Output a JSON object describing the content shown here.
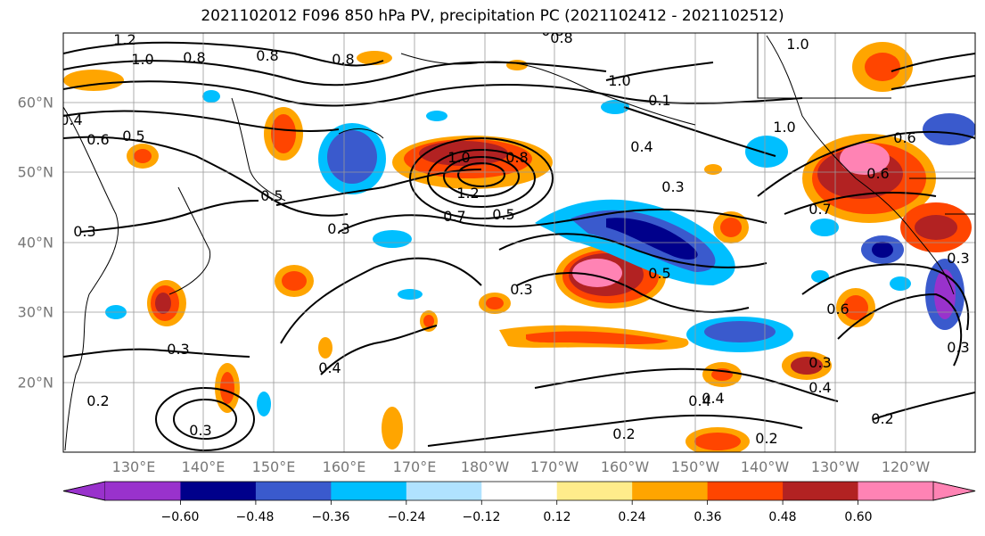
{
  "title": "2021102012 F096 850 hPa PV, precipitation PC (2021102412 - 2021102512)",
  "lat_labels": [
    "60°N",
    "50°N",
    "40°N",
    "30°N",
    "20°N"
  ],
  "lon_labels": [
    "130°E",
    "140°E",
    "150°E",
    "160°E",
    "170°E",
    "180°W",
    "170°W",
    "160°W",
    "150°W",
    "140°W",
    "130°W",
    "120°W"
  ],
  "contour_labels": [
    "1.2",
    "1.0",
    "0.8",
    "0.8",
    "0.8",
    "0.8",
    "1.0",
    "1.0",
    "0.4",
    "0.6",
    "0.5",
    "0.3",
    "0.5",
    "0.3",
    "1.0",
    "0.8",
    "1.2",
    "0.7",
    "0.5",
    "0.3",
    "0.5",
    "0.4",
    "0.4",
    "0.3",
    "0.3",
    "0.4",
    "0.2",
    "0.3",
    "0.2",
    "0.2",
    "0.2",
    "0.3",
    "0.6",
    "0.4",
    "0.3",
    "0.6",
    "0.3",
    "0.4",
    "1.0",
    "0.7",
    "0.8",
    "0.1",
    "0.6"
  ],
  "colorbar": {
    "ticks": [
      "−0.60",
      "−0.48",
      "−0.36",
      "−0.24",
      "−0.12",
      "0.12",
      "0.24",
      "0.36",
      "0.48",
      "0.60"
    ],
    "colors": [
      "#9932CC",
      "#00008B",
      "#3A5ACD",
      "#00BFFF",
      "#B0E2FF",
      "#FFFFFF",
      "#FFEC8B",
      "#FFA500",
      "#FF4500",
      "#B22222",
      "#FF83B4",
      "#FF83B4"
    ]
  }
}
